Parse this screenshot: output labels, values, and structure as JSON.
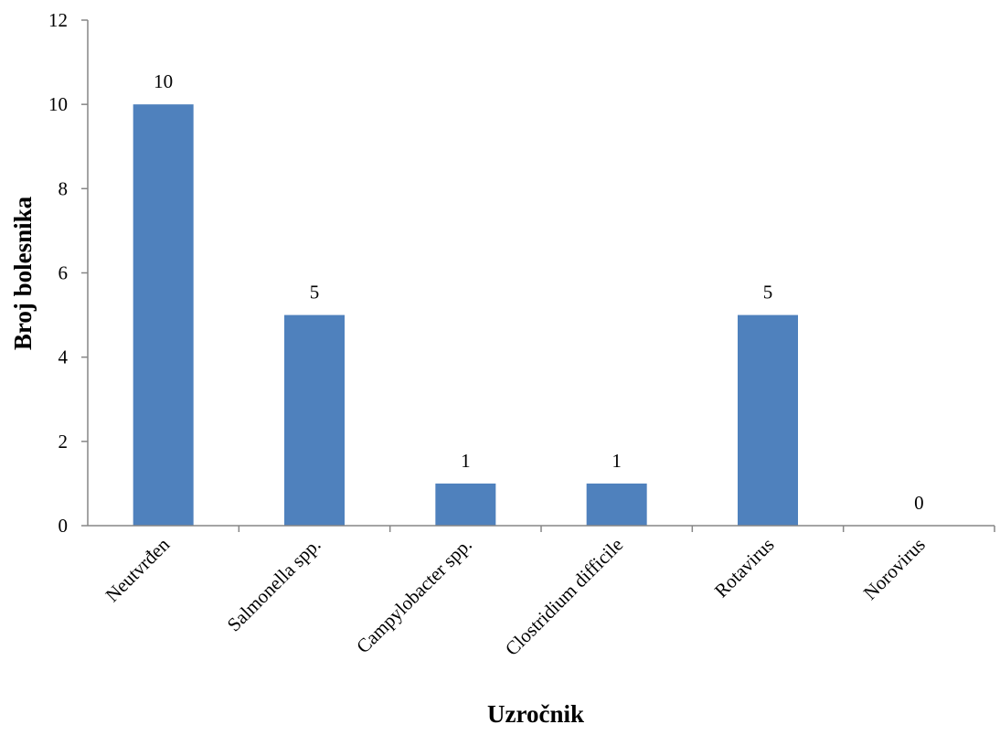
{
  "chart_data": {
    "type": "bar",
    "categories": [
      "Neutvrđen",
      "Salmonella spp.",
      "Campylobacter spp.",
      "Clostridium difficile",
      "Rotavirus",
      "Norovirus"
    ],
    "values": [
      10,
      5,
      1,
      1,
      5,
      0
    ],
    "data_labels": [
      "10",
      "5",
      "1",
      "1",
      "5",
      "0"
    ],
    "title": "",
    "xlabel": "Uzročnik",
    "ylabel": "Broj bolesnika",
    "ylim": [
      0,
      12
    ],
    "yticks": [
      0,
      2,
      4,
      6,
      8,
      10,
      12
    ],
    "ytick_labels": [
      "0",
      "2",
      "4",
      "6",
      "8",
      "10",
      "12"
    ],
    "grid": false,
    "legend": "none",
    "colors": {
      "bar": "#4f81bd",
      "axis": "#868686",
      "text": "#000000"
    }
  }
}
